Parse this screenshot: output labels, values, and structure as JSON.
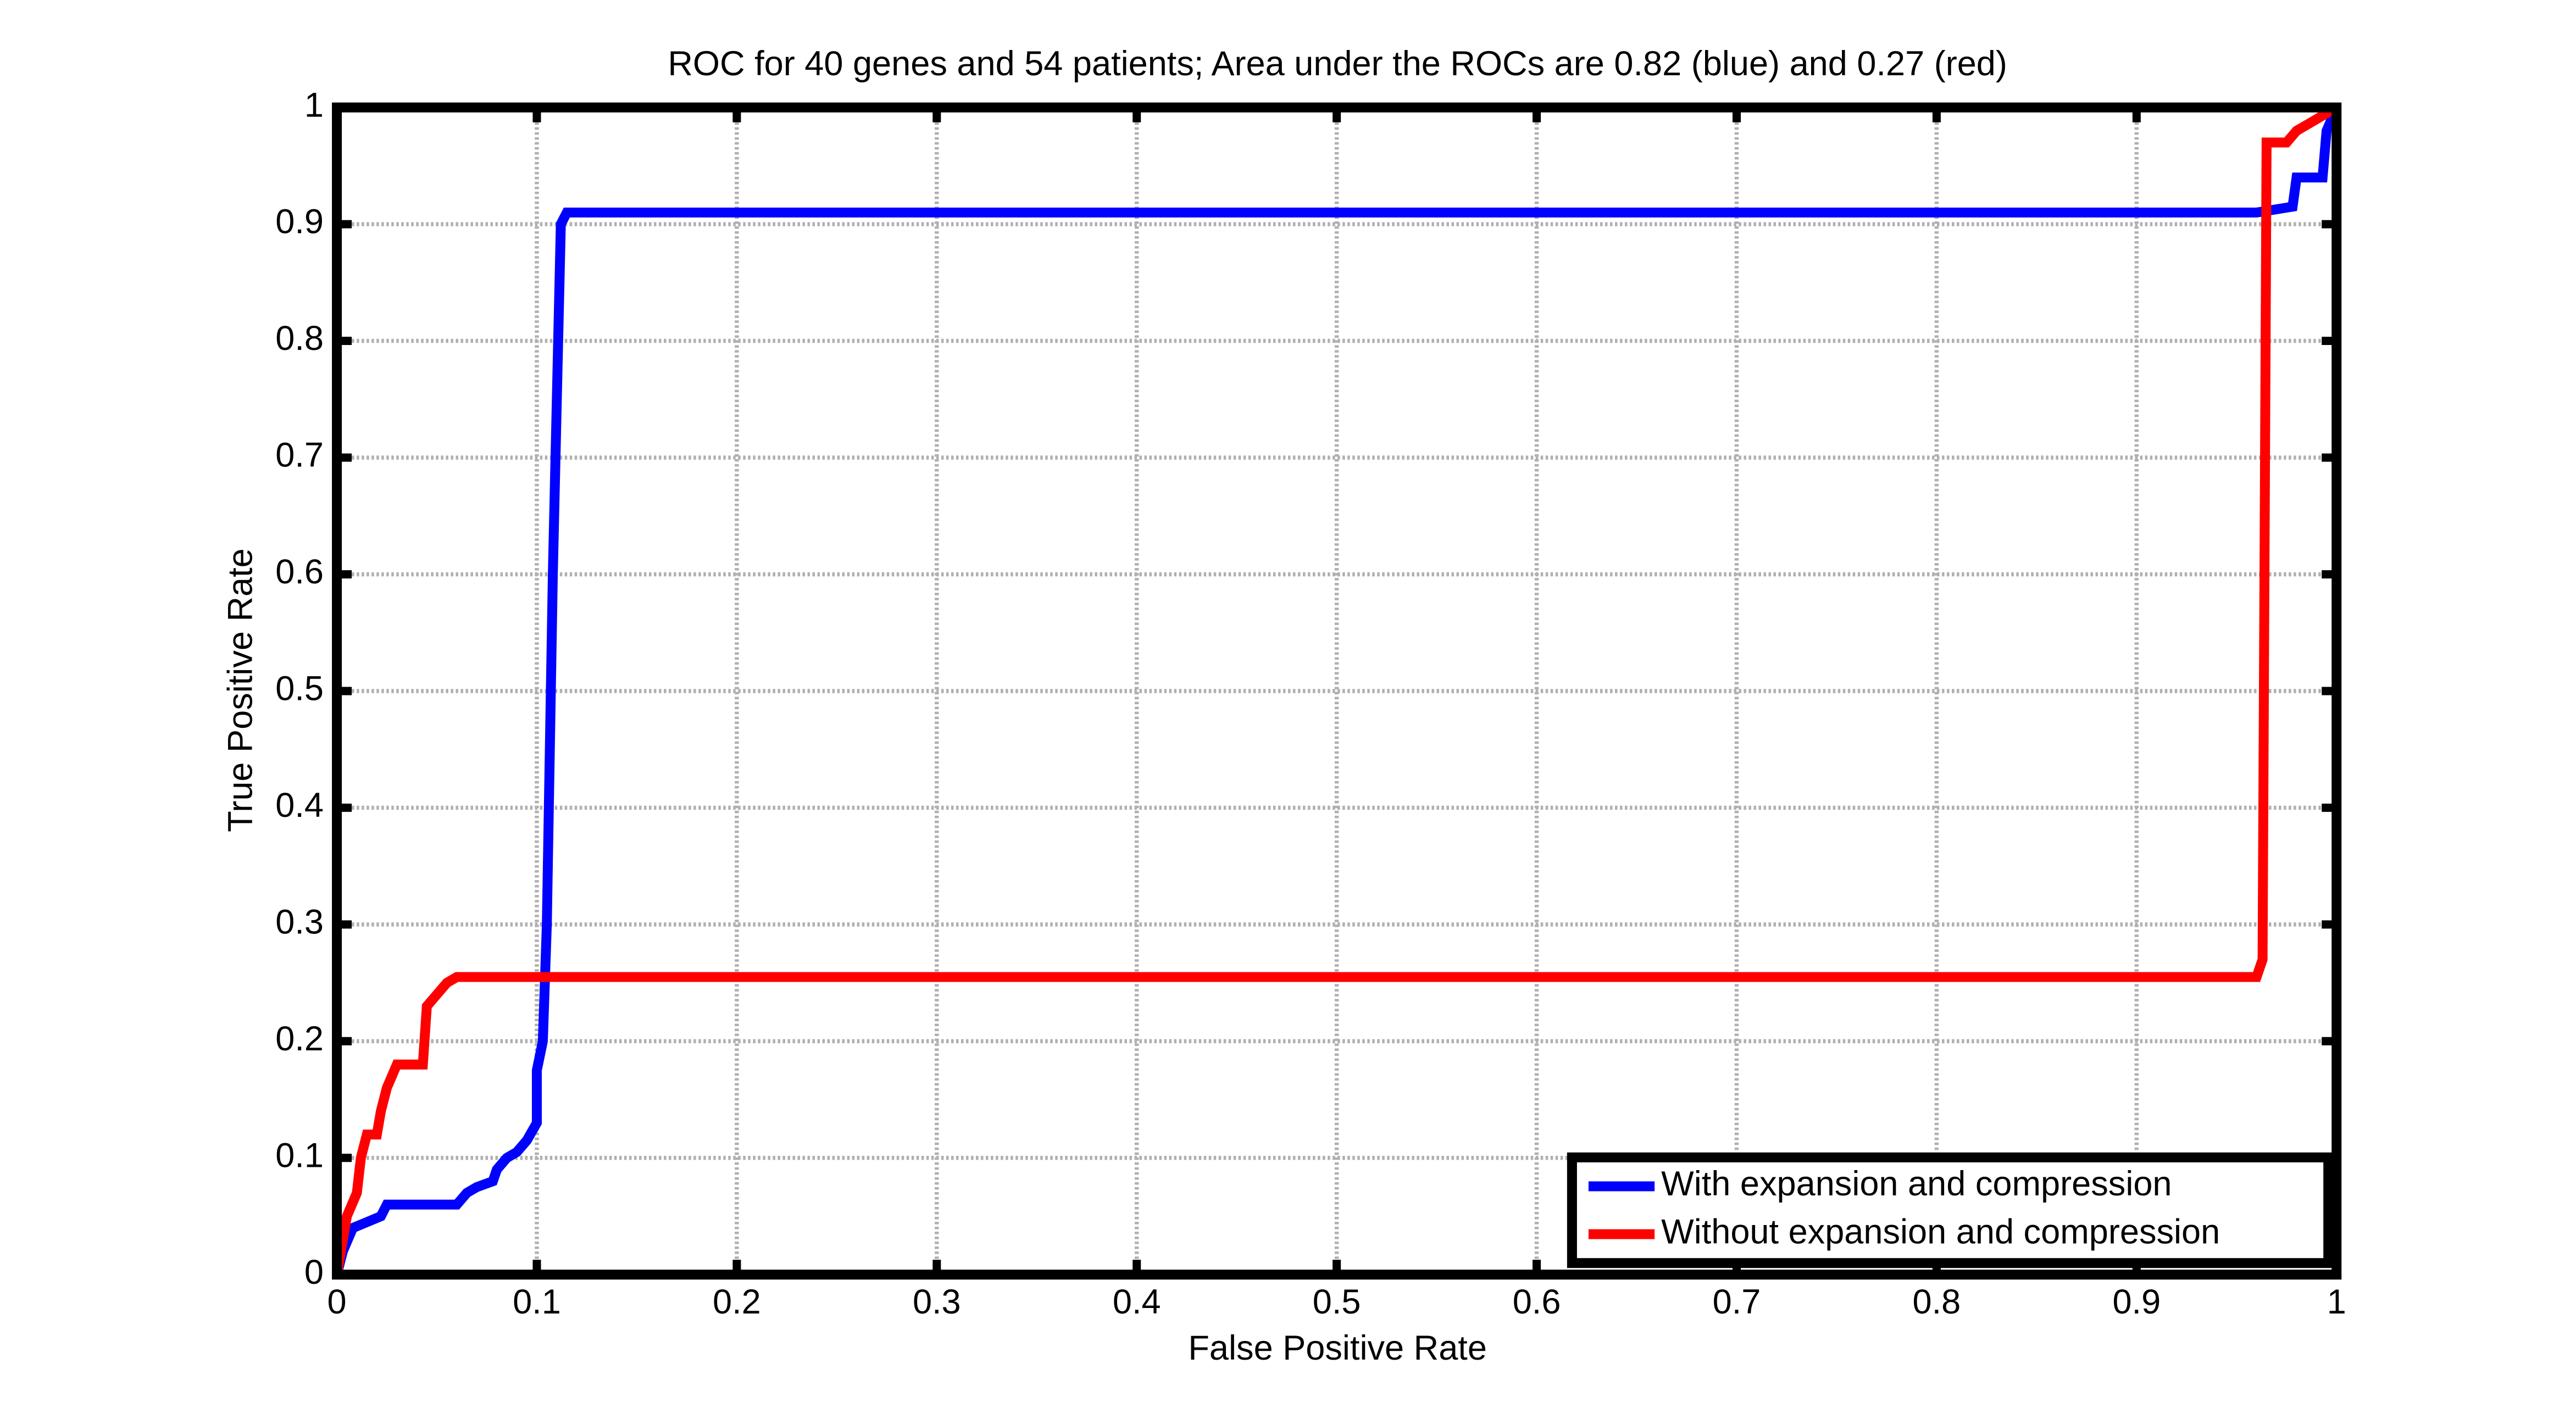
{
  "chart_data": {
    "type": "line",
    "title": "ROC for 40 genes and 54 patients; Area under the ROCs are  0.82 (blue) and 0.27 (red)",
    "xlabel": "False Positive Rate",
    "ylabel": "True Positive Rate",
    "xlim": [
      0,
      1
    ],
    "ylim": [
      0,
      1
    ],
    "xticks": [
      0,
      0.1,
      0.2,
      0.3,
      0.4,
      0.5,
      0.6,
      0.7,
      0.8,
      0.9,
      1
    ],
    "yticks": [
      0,
      0.1,
      0.2,
      0.3,
      0.4,
      0.5,
      0.6,
      0.7,
      0.8,
      0.9,
      1
    ],
    "grid": true,
    "legend": "lower right",
    "series": [
      {
        "name": "With expansion and compression",
        "color": "#0000ff",
        "x": [
          0,
          0.003,
          0.008,
          0.015,
          0.022,
          0.025,
          0.06,
          0.065,
          0.07,
          0.078,
          0.08,
          0.085,
          0.09,
          0.095,
          0.1,
          0.1,
          0.103,
          0.105,
          0.108,
          0.112,
          0.115,
          0.96,
          0.978,
          0.98,
          0.993,
          0.995,
          1
        ],
        "values": [
          0,
          0.02,
          0.04,
          0.045,
          0.05,
          0.06,
          0.06,
          0.07,
          0.075,
          0.08,
          0.09,
          0.1,
          0.105,
          0.115,
          0.13,
          0.175,
          0.2,
          0.3,
          0.6,
          0.9,
          0.91,
          0.91,
          0.915,
          0.94,
          0.94,
          0.98,
          1
        ]
      },
      {
        "name": "Without expansion and compression",
        "color": "#ff0000",
        "x": [
          0,
          0.005,
          0.01,
          0.012,
          0.015,
          0.02,
          0.022,
          0.025,
          0.03,
          0.043,
          0.045,
          0.05,
          0.055,
          0.06,
          0.96,
          0.963,
          0.965,
          0.975,
          0.98,
          0.99,
          1
        ],
        "values": [
          0,
          0.05,
          0.07,
          0.1,
          0.12,
          0.12,
          0.14,
          0.16,
          0.18,
          0.18,
          0.23,
          0.24,
          0.25,
          0.255,
          0.255,
          0.27,
          0.97,
          0.97,
          0.98,
          0.99,
          1
        ]
      }
    ]
  }
}
